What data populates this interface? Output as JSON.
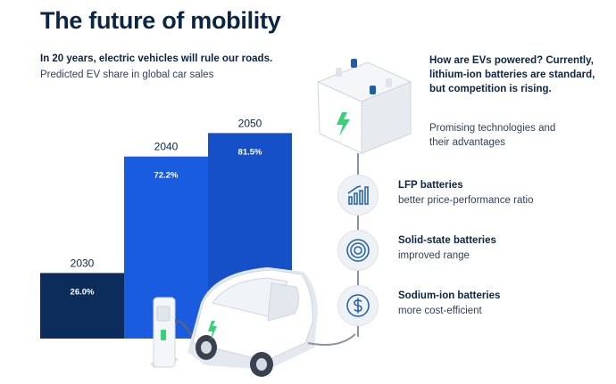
{
  "title": "The future of mobility",
  "intro": {
    "headline": "In 20 years, electric vehicles will rule our roads.",
    "subtitle": "Predicted EV share in global car sales"
  },
  "chart_data": {
    "type": "bar",
    "categories": [
      "2030",
      "2040",
      "2050"
    ],
    "values": [
      26.0,
      72.2,
      81.5
    ],
    "value_labels": [
      "26.0%",
      "72.2%",
      "81.5%"
    ],
    "colors": [
      "#0c2d5c",
      "#1a5ce0",
      "#1650c8"
    ],
    "title": "Predicted EV share in global car sales",
    "ylim": [
      0,
      100
    ],
    "grid": false
  },
  "right": {
    "question": "How are EVs powered? Currently, lithium-ion batteries are standard, but competition is rising.",
    "subhead": "Promising technologies and their advantages",
    "technologies": [
      {
        "name": "LFP batteries",
        "desc": "better price-performance ratio",
        "icon": "bar-chart-growth-icon"
      },
      {
        "name": "Solid-state batteries",
        "desc": "improved range",
        "icon": "concentric-circles-icon"
      },
      {
        "name": "Sodium-ion batteries",
        "desc": "more cost-efficient",
        "icon": "dollar-sign-icon"
      }
    ]
  },
  "colors": {
    "navy": "#0b2545",
    "accent_green": "#3ccf7a",
    "icon_blue": "#1f5fa8"
  }
}
